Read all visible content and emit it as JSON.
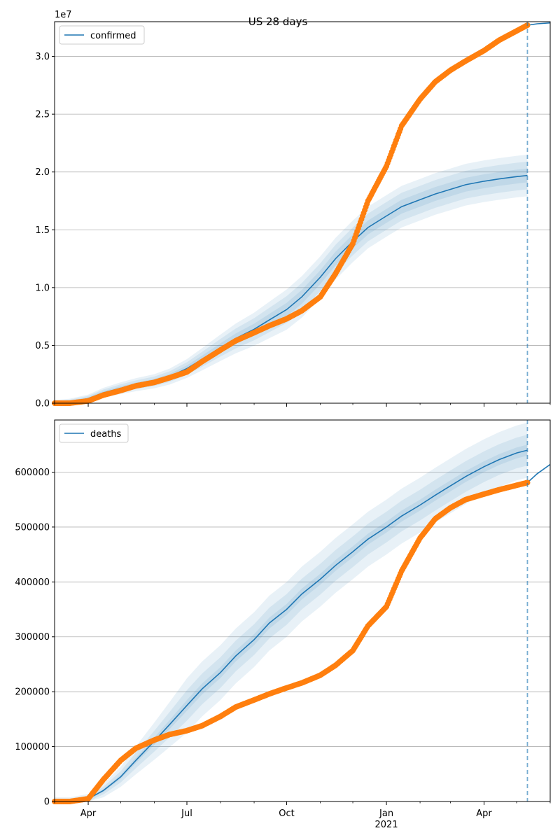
{
  "figure_title": "US 28 days",
  "chart_data": [
    {
      "type": "line",
      "title": "US 28 days",
      "xlabel": "",
      "ylabel": "",
      "y_offset_label": "1e7",
      "xlim": [
        "2020-03-01",
        "2021-06-01"
      ],
      "ylim": [
        0,
        3.3
      ],
      "y_scale_multiplier": 10000000,
      "yticks": [
        0.0,
        0.5,
        1.0,
        1.5,
        2.0,
        2.5,
        3.0
      ],
      "ytick_labels": [
        "0.0",
        "0.5",
        "1.0",
        "1.5",
        "2.0",
        "2.5",
        "3.0"
      ],
      "grid": "y",
      "legend": {
        "position": "upper-left",
        "entries": [
          "confirmed"
        ]
      },
      "forecast_marker_date": "2021-05-11",
      "series": [
        {
          "name": "confirmed",
          "kind": "model-mean",
          "color": "#1f77b4",
          "x": [
            "2020-03-01",
            "2020-03-15",
            "2020-04-01",
            "2020-04-15",
            "2020-05-01",
            "2020-05-15",
            "2020-06-01",
            "2020-06-15",
            "2020-07-01",
            "2020-07-15",
            "2020-08-01",
            "2020-08-15",
            "2020-09-01",
            "2020-09-15",
            "2020-10-01",
            "2020-10-15",
            "2020-11-01",
            "2020-11-15",
            "2020-12-01",
            "2020-12-15",
            "2021-01-01",
            "2021-01-15",
            "2021-02-01",
            "2021-02-15",
            "2021-03-01",
            "2021-03-15",
            "2021-04-01",
            "2021-04-15",
            "2021-05-01",
            "2021-05-11"
          ],
          "values": [
            0,
            0.01,
            0.04,
            0.09,
            0.13,
            0.16,
            0.19,
            0.23,
            0.3,
            0.38,
            0.48,
            0.56,
            0.64,
            0.72,
            0.81,
            0.92,
            1.09,
            1.25,
            1.4,
            1.52,
            1.62,
            1.7,
            1.76,
            1.81,
            1.85,
            1.89,
            1.92,
            1.94,
            1.96,
            1.97
          ],
          "band_offsets": [
            0.06,
            0.12,
            0.18
          ]
        },
        {
          "name": "",
          "kind": "observed",
          "color": "#ff7f0e",
          "x": [
            "2020-03-01",
            "2020-03-15",
            "2020-04-01",
            "2020-04-15",
            "2020-05-01",
            "2020-05-15",
            "2020-06-01",
            "2020-06-15",
            "2020-07-01",
            "2020-07-15",
            "2020-08-01",
            "2020-08-15",
            "2020-09-01",
            "2020-09-15",
            "2020-10-01",
            "2020-10-15",
            "2020-11-01",
            "2020-11-15",
            "2020-12-01",
            "2020-12-15",
            "2021-01-01",
            "2021-01-15",
            "2021-02-01",
            "2021-02-15",
            "2021-03-01",
            "2021-03-15",
            "2021-04-01",
            "2021-04-15",
            "2021-05-01",
            "2021-05-11"
          ],
          "values": [
            0,
            0,
            0.02,
            0.07,
            0.11,
            0.15,
            0.18,
            0.22,
            0.27,
            0.36,
            0.46,
            0.54,
            0.61,
            0.67,
            0.73,
            0.8,
            0.92,
            1.12,
            1.38,
            1.75,
            2.05,
            2.4,
            2.63,
            2.78,
            2.88,
            2.96,
            3.05,
            3.14,
            3.22,
            3.27
          ]
        },
        {
          "name": "",
          "kind": "continuation",
          "color": "#1f77b4",
          "x": [
            "2021-05-11",
            "2021-05-20",
            "2021-06-01"
          ],
          "values": [
            3.27,
            3.282,
            3.29
          ]
        }
      ]
    },
    {
      "type": "line",
      "title": "",
      "xlabel": "",
      "ylabel": "",
      "xlim": [
        "2020-03-01",
        "2021-06-01"
      ],
      "ylim": [
        0,
        695000
      ],
      "yticks": [
        0,
        100000,
        200000,
        300000,
        400000,
        500000,
        600000
      ],
      "ytick_labels": [
        "0",
        "100000",
        "200000",
        "300000",
        "400000",
        "500000",
        "600000"
      ],
      "xticks": [
        "2020-04-01",
        "2020-07-01",
        "2020-10-01",
        "2021-01-01",
        "2021-04-01"
      ],
      "xtick_labels": [
        "Apr",
        "Jul",
        "Oct",
        "Jan\n2021",
        "Apr"
      ],
      "grid": "y",
      "legend": {
        "position": "upper-left",
        "entries": [
          "deaths"
        ]
      },
      "forecast_marker_date": "2021-05-11",
      "series": [
        {
          "name": "deaths",
          "kind": "model-mean",
          "color": "#1f77b4",
          "x": [
            "2020-03-01",
            "2020-03-15",
            "2020-04-01",
            "2020-04-15",
            "2020-05-01",
            "2020-05-15",
            "2020-06-01",
            "2020-06-15",
            "2020-07-01",
            "2020-07-15",
            "2020-08-01",
            "2020-08-15",
            "2020-09-01",
            "2020-09-15",
            "2020-10-01",
            "2020-10-15",
            "2020-11-01",
            "2020-11-15",
            "2020-12-01",
            "2020-12-15",
            "2021-01-01",
            "2021-01-15",
            "2021-02-01",
            "2021-02-15",
            "2021-03-01",
            "2021-03-15",
            "2021-04-01",
            "2021-04-15",
            "2021-05-01",
            "2021-05-11"
          ],
          "values": [
            0,
            0,
            5000,
            20000,
            45000,
            75000,
            110000,
            140000,
            175000,
            205000,
            235000,
            265000,
            295000,
            325000,
            350000,
            378000,
            405000,
            430000,
            455000,
            478000,
            500000,
            520000,
            540000,
            558000,
            575000,
            592000,
            610000,
            623000,
            635000,
            640000
          ],
          "band_offsets": [
            10000,
            28000,
            50000
          ]
        },
        {
          "name": "",
          "kind": "observed",
          "color": "#ff7f0e",
          "x": [
            "2020-03-01",
            "2020-03-15",
            "2020-04-01",
            "2020-04-15",
            "2020-05-01",
            "2020-05-15",
            "2020-06-01",
            "2020-06-15",
            "2020-07-01",
            "2020-07-15",
            "2020-08-01",
            "2020-08-15",
            "2020-09-01",
            "2020-09-15",
            "2020-10-01",
            "2020-10-15",
            "2020-11-01",
            "2020-11-15",
            "2020-12-01",
            "2020-12-15",
            "2021-01-01",
            "2021-01-15",
            "2021-02-01",
            "2021-02-15",
            "2021-03-01",
            "2021-03-15",
            "2021-04-01",
            "2021-04-15",
            "2021-05-01",
            "2021-05-11"
          ],
          "values": [
            0,
            0,
            5000,
            40000,
            75000,
            97000,
            112000,
            122000,
            129000,
            138000,
            155000,
            172000,
            185000,
            196000,
            207000,
            216000,
            230000,
            248000,
            275000,
            320000,
            355000,
            420000,
            480000,
            515000,
            535000,
            550000,
            560000,
            568000,
            576000,
            581000
          ]
        },
        {
          "name": "",
          "kind": "continuation",
          "color": "#1f77b4",
          "x": [
            "2021-05-11",
            "2021-05-20",
            "2021-06-01"
          ],
          "values": [
            581000,
            597000,
            614000
          ]
        }
      ]
    }
  ]
}
